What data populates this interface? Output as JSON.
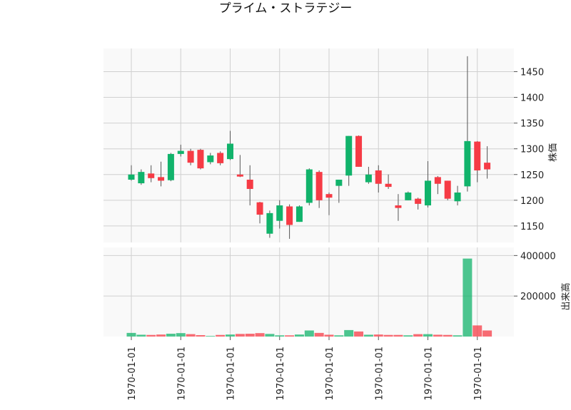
{
  "chart_data": {
    "type": "candlestick",
    "title": "プライム・ストラテジー",
    "price_panel": {
      "ylabel": "株価",
      "ylim": [
        1118,
        1495
      ],
      "yticks": [
        1150,
        1200,
        1250,
        1300,
        1350,
        1400,
        1450
      ],
      "ytick_labels": [
        "1150",
        "1200",
        "1250",
        "1300",
        "1350",
        "1400",
        "1450"
      ],
      "grid": true
    },
    "volume_panel": {
      "ylabel": "出来高",
      "ylim": [
        0,
        440000
      ],
      "yticks": [
        200000,
        400000
      ],
      "ytick_labels": [
        "200000",
        "400000"
      ],
      "grid": true
    },
    "x_tick_labels": [
      "1970-01-01",
      "1970-01-01",
      "1970-01-01",
      "1970-01-01",
      "1970-01-01",
      "1970-01-01",
      "1970-01-01",
      "1970-01-01"
    ],
    "x_tick_positions": [
      0,
      5,
      10,
      15,
      20,
      25,
      30,
      35
    ],
    "up_color": "#11b36b",
    "down_color": "#f63b45",
    "candles": [
      {
        "open": 1240,
        "high": 1268,
        "low": 1238,
        "close": 1250,
        "volume": 18000
      },
      {
        "open": 1233,
        "high": 1260,
        "low": 1230,
        "close": 1255,
        "volume": 9000
      },
      {
        "open": 1252,
        "high": 1268,
        "low": 1235,
        "close": 1243,
        "volume": 8000
      },
      {
        "open": 1245,
        "high": 1275,
        "low": 1227,
        "close": 1238,
        "volume": 10000
      },
      {
        "open": 1239,
        "high": 1292,
        "low": 1237,
        "close": 1290,
        "volume": 14000
      },
      {
        "open": 1290,
        "high": 1308,
        "low": 1285,
        "close": 1296,
        "volume": 17000
      },
      {
        "open": 1296,
        "high": 1300,
        "low": 1268,
        "close": 1273,
        "volume": 12000
      },
      {
        "open": 1298,
        "high": 1300,
        "low": 1260,
        "close": 1262,
        "volume": 7000
      },
      {
        "open": 1274,
        "high": 1292,
        "low": 1270,
        "close": 1287,
        "volume": 3000
      },
      {
        "open": 1292,
        "high": 1295,
        "low": 1268,
        "close": 1272,
        "volume": 8000
      },
      {
        "open": 1280,
        "high": 1335,
        "low": 1278,
        "close": 1310,
        "volume": 10000
      },
      {
        "open": 1250,
        "high": 1288,
        "low": 1245,
        "close": 1246,
        "volume": 13000
      },
      {
        "open": 1240,
        "high": 1268,
        "low": 1190,
        "close": 1222,
        "volume": 14000
      },
      {
        "open": 1196,
        "high": 1197,
        "low": 1155,
        "close": 1172,
        "volume": 17000
      },
      {
        "open": 1135,
        "high": 1180,
        "low": 1127,
        "close": 1175,
        "volume": 13000
      },
      {
        "open": 1160,
        "high": 1200,
        "low": 1145,
        "close": 1190,
        "volume": 6000
      },
      {
        "open": 1188,
        "high": 1192,
        "low": 1125,
        "close": 1152,
        "volume": 6000
      },
      {
        "open": 1158,
        "high": 1190,
        "low": 1158,
        "close": 1188,
        "volume": 10000
      },
      {
        "open": 1195,
        "high": 1262,
        "low": 1190,
        "close": 1260,
        "volume": 30000
      },
      {
        "open": 1255,
        "high": 1258,
        "low": 1185,
        "close": 1200,
        "volume": 18000
      },
      {
        "open": 1212,
        "high": 1215,
        "low": 1171,
        "close": 1205,
        "volume": 9000
      },
      {
        "open": 1228,
        "high": 1240,
        "low": 1195,
        "close": 1240,
        "volume": 6000
      },
      {
        "open": 1248,
        "high": 1325,
        "low": 1228,
        "close": 1325,
        "volume": 32000
      },
      {
        "open": 1325,
        "high": 1326,
        "low": 1265,
        "close": 1265,
        "volume": 25000
      },
      {
        "open": 1235,
        "high": 1265,
        "low": 1232,
        "close": 1250,
        "volume": 9000
      },
      {
        "open": 1258,
        "high": 1268,
        "low": 1215,
        "close": 1232,
        "volume": 10000
      },
      {
        "open": 1232,
        "high": 1250,
        "low": 1222,
        "close": 1226,
        "volume": 8000
      },
      {
        "open": 1190,
        "high": 1212,
        "low": 1160,
        "close": 1185,
        "volume": 8000
      },
      {
        "open": 1200,
        "high": 1217,
        "low": 1200,
        "close": 1215,
        "volume": 6000
      },
      {
        "open": 1203,
        "high": 1205,
        "low": 1182,
        "close": 1193,
        "volume": 12000
      },
      {
        "open": 1190,
        "high": 1276,
        "low": 1186,
        "close": 1238,
        "volume": 12000
      },
      {
        "open": 1245,
        "high": 1247,
        "low": 1212,
        "close": 1232,
        "volume": 9000
      },
      {
        "open": 1238,
        "high": 1238,
        "low": 1200,
        "close": 1203,
        "volume": 8000
      },
      {
        "open": 1198,
        "high": 1228,
        "low": 1190,
        "close": 1215,
        "volume": 6000
      },
      {
        "open": 1227,
        "high": 1480,
        "low": 1217,
        "close": 1315,
        "volume": 385000
      },
      {
        "open": 1314,
        "high": 1315,
        "low": 1235,
        "close": 1258,
        "volume": 55000
      },
      {
        "open": 1273,
        "high": 1305,
        "low": 1242,
        "close": 1260,
        "volume": 30000
      }
    ]
  }
}
